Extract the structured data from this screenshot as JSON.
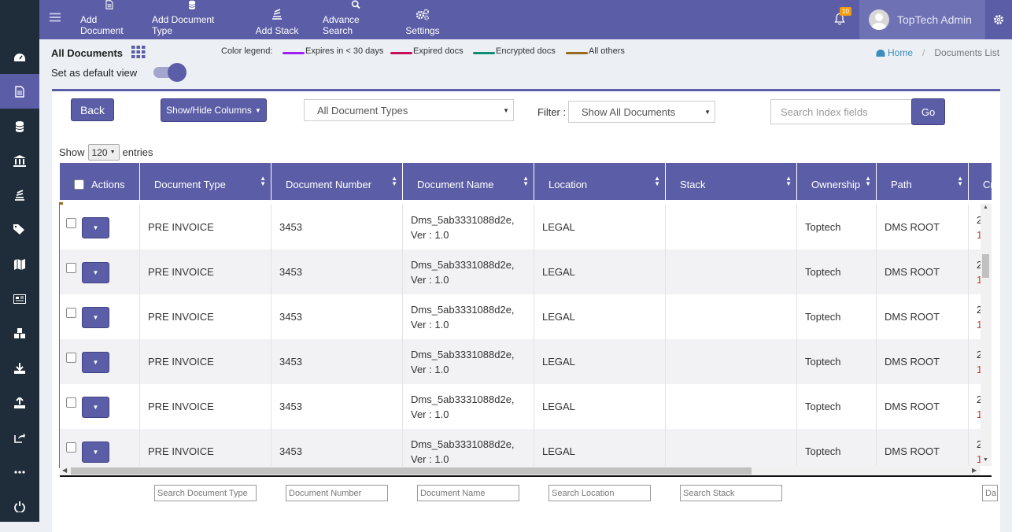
{
  "sidebar": {
    "items": [
      {
        "icon": "dashboard-icon"
      },
      {
        "icon": "document-icon",
        "active": true
      },
      {
        "icon": "database-icon"
      },
      {
        "icon": "bank-icon"
      },
      {
        "icon": "stack-icon"
      },
      {
        "icon": "tags-icon"
      },
      {
        "icon": "map-icon"
      },
      {
        "icon": "newspaper-icon"
      },
      {
        "icon": "cubes-icon"
      },
      {
        "icon": "download-icon"
      },
      {
        "icon": "upload-icon"
      },
      {
        "icon": "share-icon"
      },
      {
        "icon": "more-icon"
      },
      {
        "icon": "power-icon"
      }
    ]
  },
  "topbar": {
    "add_document": "Add Document",
    "add_document_type": "Add Document Type",
    "add_stack": "Add Stack",
    "advance_search": "Advance Search",
    "settings": "Settings",
    "notification_count": "10",
    "user_name": "TopTech Admin"
  },
  "page": {
    "title": "All Documents",
    "default_view_label": "Set as default view",
    "legend_label": "Color legend:",
    "legend": [
      {
        "label": "Expires in < 30 days",
        "color": "#a020f0"
      },
      {
        "label": "Expired docs",
        "color": "#c8105a"
      },
      {
        "label": "Encrypted docs",
        "color": "#0e8f72"
      },
      {
        "label": "All others",
        "color": "#9a6b1c"
      }
    ],
    "breadcrumb_home": "Home",
    "breadcrumb_sep": "/",
    "breadcrumb_current": "Documents List"
  },
  "toolbar": {
    "back_label": "Back",
    "show_hide_label": "Show/Hide Columns",
    "doc_type_value": "All Document Types",
    "filter_label": "Filter :",
    "filter_value": "Show All Documents",
    "search_placeholder": "Search Index fields",
    "go_label": "Go",
    "show_label": "Show",
    "entries_value": "120",
    "entries_label": "entries"
  },
  "table": {
    "columns": [
      "Actions",
      "Document Type",
      "Document Number",
      "Document Name",
      "Location",
      "Stack",
      "Ownership",
      "Path",
      "Cr"
    ],
    "rows": [
      {
        "type": "PRE INVOICE",
        "number": "3453",
        "name1": "Dms_5ab3331088d2e,",
        "name2": "Ver : 1.0",
        "location": "LEGAL",
        "stack": "",
        "ownership": "Toptech",
        "path": "DMS ROOT",
        "c1": "2",
        "c2": "1"
      },
      {
        "type": "PRE INVOICE",
        "number": "3453",
        "name1": "Dms_5ab3331088d2e,",
        "name2": "Ver : 1.0",
        "location": "LEGAL",
        "stack": "",
        "ownership": "Toptech",
        "path": "DMS ROOT",
        "c1": "2",
        "c2": "1"
      },
      {
        "type": "PRE INVOICE",
        "number": "3453",
        "name1": "Dms_5ab3331088d2e,",
        "name2": "Ver : 1.0",
        "location": "LEGAL",
        "stack": "",
        "ownership": "Toptech",
        "path": "DMS ROOT",
        "c1": "2",
        "c2": "1"
      },
      {
        "type": "PRE INVOICE",
        "number": "3453",
        "name1": "Dms_5ab3331088d2e,",
        "name2": "Ver : 1.0",
        "location": "LEGAL",
        "stack": "",
        "ownership": "Toptech",
        "path": "DMS ROOT",
        "c1": "2",
        "c2": "1"
      },
      {
        "type": "PRE INVOICE",
        "number": "3453",
        "name1": "Dms_5ab3331088d2e,",
        "name2": "Ver : 1.0",
        "location": "LEGAL",
        "stack": "",
        "ownership": "Toptech",
        "path": "DMS ROOT",
        "c1": "2",
        "c2": "1"
      },
      {
        "type": "PRE INVOICE",
        "number": "3453",
        "name1": "Dms_5ab3331088d2e,",
        "name2": "Ver : 1.0",
        "location": "LEGAL",
        "stack": "",
        "ownership": "Toptech",
        "path": "DMS ROOT",
        "c1": "2",
        "c2": "1"
      }
    ],
    "footer_search": [
      "Search Document Type",
      "Document Number",
      "Document Name",
      "Search  Location",
      "Search Stack",
      "Da"
    ]
  }
}
